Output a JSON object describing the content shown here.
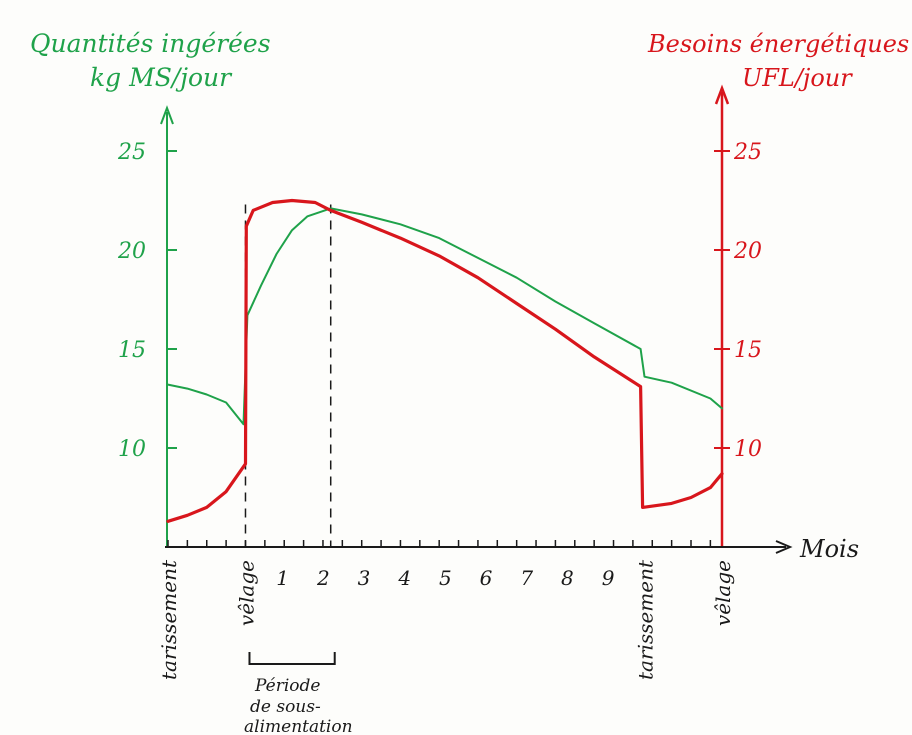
{
  "chart_data": {
    "type": "line",
    "title": "",
    "left_axis": {
      "label_line1": "Quantités ingérées",
      "label_line2": "kg MS/jour",
      "ticks": [
        10,
        15,
        20,
        25
      ],
      "ylim": [
        5,
        30
      ],
      "color": "#1fa24a"
    },
    "right_axis": {
      "label_line1": "Besoins énergétiques",
      "label_line2": "UFL/jour",
      "ticks": [
        10,
        15,
        20,
        25
      ],
      "ylim": [
        5,
        30
      ],
      "color": "#d8161c"
    },
    "x_axis": {
      "label": "Mois",
      "month_ticks": [
        "1",
        "2",
        "3",
        "4",
        "5",
        "6",
        "7",
        "8",
        "9"
      ],
      "event_labels": [
        {
          "x": -2,
          "text": "tarissement"
        },
        {
          "x": 0,
          "text": "vêlage"
        },
        {
          "x": 10.3,
          "text": "tarissement"
        },
        {
          "x": 12.3,
          "text": "vêlage"
        }
      ],
      "xlim": [
        -2,
        12.3
      ],
      "dashed_marks": [
        0,
        2.2
      ]
    },
    "annotation": {
      "line1": "Période",
      "line2": "de sous-",
      "line3": "alimentation",
      "x_start": 0,
      "x_end": 2.2
    },
    "series": [
      {
        "color": "#1fa24a",
        "axis": "left",
        "points": [
          [
            -2,
            13.2
          ],
          [
            -1.5,
            13.0
          ],
          [
            -1,
            12.7
          ],
          [
            -0.5,
            12.3
          ],
          [
            -0.05,
            11.2
          ],
          [
            0.05,
            16.7
          ],
          [
            0.4,
            18.2
          ],
          [
            0.8,
            19.8
          ],
          [
            1.2,
            21.0
          ],
          [
            1.6,
            21.7
          ],
          [
            2.2,
            22.1
          ],
          [
            3,
            21.8
          ],
          [
            4,
            21.3
          ],
          [
            5,
            20.6
          ],
          [
            6,
            19.6
          ],
          [
            7,
            18.6
          ],
          [
            8,
            17.4
          ],
          [
            9,
            16.3
          ],
          [
            10.2,
            15.0
          ],
          [
            10.3,
            13.6
          ],
          [
            11,
            13.3
          ],
          [
            12,
            12.5
          ],
          [
            12.3,
            12.0
          ]
        ]
      },
      {
        "color": "#d8161c",
        "axis": "right",
        "points": [
          [
            -2,
            6.3
          ],
          [
            -1.5,
            6.6
          ],
          [
            -1,
            7.0
          ],
          [
            -0.5,
            7.8
          ],
          [
            0,
            9.2
          ],
          [
            0.02,
            21.2
          ],
          [
            0.2,
            22.0
          ],
          [
            0.7,
            22.4
          ],
          [
            1.2,
            22.5
          ],
          [
            1.8,
            22.4
          ],
          [
            2.2,
            22.0
          ],
          [
            3,
            21.4
          ],
          [
            4,
            20.6
          ],
          [
            5,
            19.7
          ],
          [
            6,
            18.6
          ],
          [
            7,
            17.3
          ],
          [
            8,
            16.0
          ],
          [
            9,
            14.6
          ],
          [
            10.2,
            13.1
          ],
          [
            10.25,
            7.0
          ],
          [
            11,
            7.2
          ],
          [
            11.5,
            7.5
          ],
          [
            12,
            8.0
          ],
          [
            12.3,
            8.7
          ]
        ]
      }
    ]
  }
}
